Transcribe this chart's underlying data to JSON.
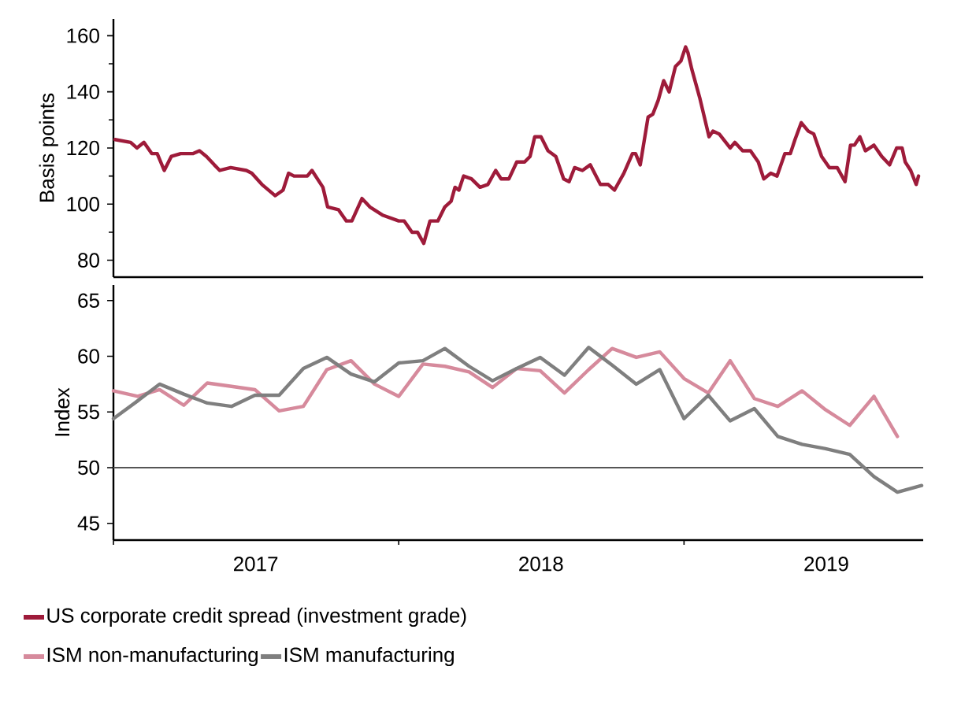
{
  "chart_data": [
    {
      "type": "line",
      "ylabel": "Basis points",
      "xlim": [
        "2017-01-01",
        "2019-11-03"
      ],
      "ylim": [
        74,
        166
      ],
      "yticks": [
        80,
        {
          "value": 90,
          "label": null
        },
        100,
        {
          "value": 110,
          "label": null
        },
        120,
        {
          "value": 130,
          "label": null
        },
        140,
        {
          "value": 150,
          "label": null
        },
        160
      ],
      "tick_labels": "y",
      "legend": "bottom",
      "x": [
        "2017-01-03",
        "2017-01-23",
        "2017-01-31",
        "2017-02-09",
        "2017-02-19",
        "2017-02-26",
        "2017-03-07",
        "2017-03-16",
        "2017-03-28",
        "2017-04-13",
        "2017-04-21",
        "2017-04-30",
        "2017-05-10",
        "2017-05-17",
        "2017-05-31",
        "2017-06-20",
        "2017-06-27",
        "2017-07-10",
        "2017-07-27",
        "2017-08-06",
        "2017-08-13",
        "2017-08-20",
        "2017-09-06",
        "2017-09-12",
        "2017-09-26",
        "2017-10-02",
        "2017-10-16",
        "2017-10-26",
        "2017-11-02",
        "2017-11-15",
        "2017-11-25",
        "2017-12-12",
        "2018-01-01",
        "2018-01-08",
        "2018-01-18",
        "2018-01-25",
        "2018-02-02",
        "2018-02-10",
        "2018-02-20",
        "2018-03-01",
        "2018-03-09",
        "2018-03-14",
        "2018-03-19",
        "2018-03-25",
        "2018-04-04",
        "2018-04-15",
        "2018-04-25",
        "2018-05-05",
        "2018-05-12",
        "2018-05-22",
        "2018-06-01",
        "2018-06-11",
        "2018-06-18",
        "2018-06-24",
        "2018-07-02",
        "2018-07-11",
        "2018-07-21",
        "2018-07-31",
        "2018-08-07",
        "2018-08-14",
        "2018-08-24",
        "2018-09-03",
        "2018-09-16",
        "2018-09-26",
        "2018-10-04",
        "2018-10-16",
        "2018-10-27",
        "2018-10-31",
        "2018-11-06",
        "2018-11-16",
        "2018-11-22",
        "2018-11-29",
        "2018-12-06",
        "2018-12-13",
        "2018-12-21",
        "2018-12-28",
        "2019-01-03",
        "2019-01-06",
        "2019-01-11",
        "2019-01-21",
        "2019-02-02",
        "2019-02-07",
        "2019-02-15",
        "2019-03-01",
        "2019-03-07",
        "2019-03-17",
        "2019-03-27",
        "2019-04-06",
        "2019-04-13",
        "2019-04-22",
        "2019-04-30",
        "2019-05-10",
        "2019-05-17",
        "2019-05-23",
        "2019-05-31",
        "2019-06-09",
        "2019-06-16",
        "2019-06-26",
        "2019-07-06",
        "2019-07-16",
        "2019-07-26",
        "2019-08-02",
        "2019-08-07",
        "2019-08-14",
        "2019-08-21",
        "2019-09-01",
        "2019-09-11",
        "2019-09-21",
        "2019-09-30",
        "2019-10-07",
        "2019-10-11",
        "2019-10-18",
        "2019-10-25",
        "2019-10-28"
      ],
      "series": [
        {
          "name": "US corporate credit spread (investment grade)",
          "color": "#9e1b3a",
          "values": [
            123,
            122,
            120,
            122,
            118,
            118,
            112,
            117,
            118,
            118,
            119,
            117,
            114,
            112,
            113,
            112,
            111,
            107,
            103,
            105,
            111,
            110,
            110,
            112,
            106,
            99,
            98,
            94,
            94,
            102,
            99,
            96,
            94,
            94,
            90,
            90,
            86,
            94,
            94,
            99,
            101,
            106,
            105,
            110,
            109,
            106,
            107,
            112,
            109,
            109,
            115,
            115,
            117,
            124,
            124,
            119,
            117,
            109,
            108,
            113,
            112,
            114,
            107,
            107,
            105,
            111,
            118,
            118,
            114,
            131,
            132,
            137,
            144,
            140,
            149,
            151,
            156,
            154,
            148,
            138,
            124,
            126,
            125,
            120,
            122,
            119,
            119,
            115,
            109,
            111,
            110,
            118,
            118,
            123,
            129,
            126,
            125,
            117,
            113,
            113,
            108,
            121,
            121,
            124,
            119,
            121,
            117,
            114,
            120,
            120,
            115,
            112,
            107,
            110
          ]
        }
      ]
    },
    {
      "type": "line",
      "ylabel": "Index",
      "xlim": [
        "2017-01-01",
        "2019-11-03"
      ],
      "ylim": [
        43.5,
        66.4
      ],
      "yticks": [
        45,
        50,
        55,
        60,
        65
      ],
      "xticks": [
        {
          "value": "2017-01-01",
          "label": null
        },
        {
          "value": "2017-07-02",
          "label": "2017"
        },
        {
          "value": "2018-01-01",
          "label": null
        },
        {
          "value": "2018-07-02",
          "label": "2018"
        },
        {
          "value": "2019-01-01",
          "label": null
        },
        {
          "value": "2019-07-02",
          "label": "2019"
        }
      ],
      "ref_lines": [
        {
          "axis": "y",
          "value": 50,
          "color": "#555555"
        }
      ],
      "legend": "bottom",
      "x": [
        "2017-01",
        "2017-02",
        "2017-03",
        "2017-04",
        "2017-05",
        "2017-06",
        "2017-07",
        "2017-08",
        "2017-09",
        "2017-10",
        "2017-11",
        "2017-12",
        "2018-01",
        "2018-02",
        "2018-03",
        "2018-04",
        "2018-05",
        "2018-06",
        "2018-07",
        "2018-08",
        "2018-09",
        "2018-10",
        "2018-11",
        "2018-12",
        "2019-01",
        "2019-02",
        "2019-03",
        "2019-04",
        "2019-05",
        "2019-06",
        "2019-07",
        "2019-08",
        "2019-09",
        "2019-10",
        "2019-11"
      ],
      "series": [
        {
          "name": "ISM non-manufacturing",
          "color": "#d68a9c",
          "values": [
            56.9,
            56.4,
            57.0,
            55.6,
            57.6,
            57.3,
            57.0,
            55.1,
            55.5,
            58.8,
            59.6,
            57.5,
            56.4,
            59.3,
            59.1,
            58.6,
            57.2,
            58.9,
            58.7,
            56.7,
            58.8,
            60.7,
            59.9,
            60.4,
            58.0,
            56.7,
            59.6,
            56.2,
            55.5,
            56.9,
            55.2,
            53.8,
            56.4,
            52.8,
            null
          ]
        },
        {
          "name": "ISM manufacturing",
          "color": "#7f7f7f",
          "values": [
            54.4,
            56.0,
            57.5,
            56.6,
            55.8,
            55.5,
            56.5,
            56.5,
            58.9,
            59.9,
            58.4,
            57.7,
            59.4,
            59.6,
            60.7,
            59.1,
            57.8,
            58.9,
            59.9,
            58.3,
            60.8,
            59.2,
            57.5,
            58.8,
            54.4,
            56.5,
            54.2,
            55.3,
            52.8,
            52.1,
            51.7,
            51.2,
            49.2,
            47.8,
            48.4
          ]
        }
      ]
    }
  ]
}
